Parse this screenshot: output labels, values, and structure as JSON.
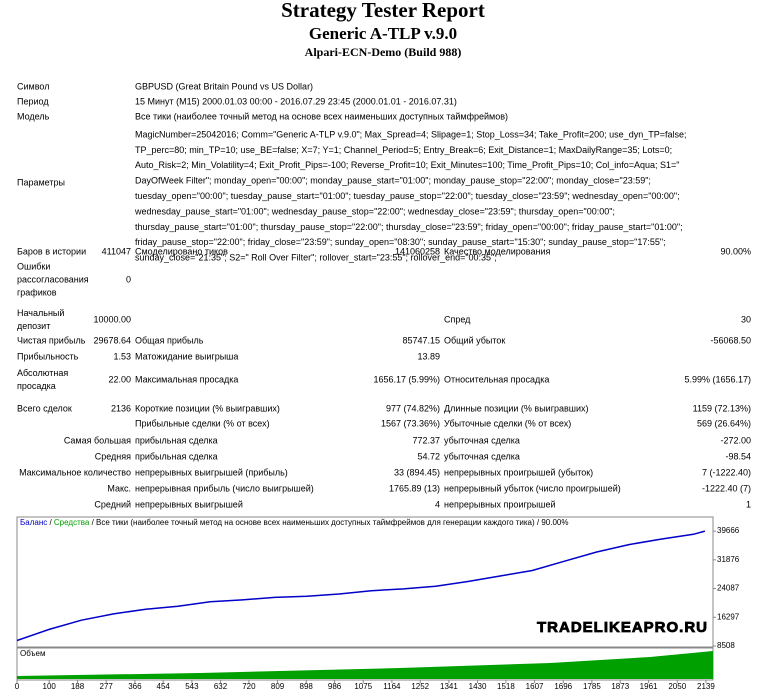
{
  "header": {
    "title": "Strategy Tester Report",
    "subtitle": "Generic A-TLP v.9.0",
    "server": "Alpari-ECN-Demo (Build 988)"
  },
  "info": [
    {
      "label": "Символ",
      "value": "GBPUSD (Great Britain Pound vs US Dollar)"
    },
    {
      "label": "Период",
      "value": "15 Минут (M15) 2000.01.03 00:00 - 2016.07.29 23:45 (2000.01.01 - 2016.07.31)"
    },
    {
      "label": "Модель",
      "value": "Все тики (наиболее точный метод на основе всех наименьших доступных таймфреймов)"
    }
  ],
  "parameters": {
    "label": "Параметры",
    "lines": [
      "MagicNumber=25042016; Comm=\"Generic A-TLP v.9.0\"; Max_Spread=4; Slipage=1; Stop_Loss=34; Take_Profit=200; use_dyn_TP=false;",
      "TP_perc=80; min_TP=10; use_BE=false; X=7; Y=1; Channel_Period=5; Entry_Break=6; Exit_Distance=1; MaxDailyRange=35; Lots=0;",
      "Auto_Risk=2; Min_Volatility=4; Exit_Profit_Pips=-100; Reverse_Profit=10; Exit_Minutes=100; Time_Profit_Pips=10; Col_info=Aqua; S1=\"",
      "DayOfWeek Filter\"; monday_open=\"00:00\"; monday_pause_start=\"01:00\"; monday_pause_stop=\"22:00\"; monday_close=\"23:59\";",
      "tuesday_open=\"00:00\"; tuesday_pause_start=\"01:00\"; tuesday_pause_stop=\"22:00\"; tuesday_close=\"23:59\"; wednesday_open=\"00:00\";",
      "wednesday_pause_start=\"01:00\"; wednesday_pause_stop=\"22:00\"; wednesday_close=\"23:59\"; thursday_open=\"00:00\";",
      "thursday_pause_start=\"01:00\"; thursday_pause_stop=\"22:00\"; thursday_close=\"23:59\"; friday_open=\"00:00\"; friday_pause_start=\"01:00\";",
      "friday_pause_stop=\"22:00\"; friday_close=\"23:59\"; sunday_open=\"08:30\"; sunday_pause_start=\"15:30\"; sunday_pause_stop=\"17:55\";",
      "sunday_close=\"21:35\"; S2=\" Roll Over Filter\"; rollover_start=\"23:55\"; rollover_end=\"00:35\";"
    ]
  },
  "stats": [
    {
      "label1": [
        "Баров в истории"
      ],
      "value1": "411047",
      "label2": "Смоделировано тиков",
      "value2": "141060258",
      "label3": "Качество моделирования",
      "value3": "90.00%"
    },
    {
      "label1": [
        "Ошибки",
        "рассогласования",
        "графиков"
      ],
      "value1": "0"
    },
    {
      "label1": [
        "Начальный",
        "депозит"
      ],
      "value1": "10000.00",
      "label3": "Спред",
      "value3": "30"
    },
    {
      "label1": [
        "Чистая прибыль"
      ],
      "value1": "29678.64",
      "label2": "Общая прибыль",
      "value2": "85747.15",
      "label3": "Общий убыток",
      "value3": "-56068.50"
    },
    {
      "label1": [
        "Прибыльность"
      ],
      "value1": "1.53",
      "label2": "Матожидание выигрыша",
      "value2": "13.89"
    },
    {
      "label1": [
        "Абсолютная",
        "просадка"
      ],
      "value1": "22.00",
      "label2": "Максимальная просадка",
      "value2": "1656.17 (5.99%)",
      "label3": "Относительная просадка",
      "value3": "5.99% (1656.17)"
    },
    {
      "label1": [
        "Всего сделок"
      ],
      "value1": "2136",
      "label2": "Короткие позиции (% выигравших)",
      "value2": "977 (74.82%)",
      "label3": "Длинные позиции (% выигравших)",
      "value3": "1159 (72.13%)"
    },
    {
      "label2": "Прибыльные сделки (% от всех)",
      "value2": "1567 (73.36%)",
      "label3": "Убыточные сделки (% от всех)",
      "value3": "569 (26.64%)"
    },
    {
      "label1": [
        "Самая большая"
      ],
      "label2": "прибыльная сделка",
      "value2": "772.37",
      "label3": "убыточная сделка",
      "value3": "-272.00"
    },
    {
      "label1": [
        "Средняя"
      ],
      "label2": "прибыльная сделка",
      "value2": "54.72",
      "label3": "убыточная сделка",
      "value3": "-98.54"
    },
    {
      "label1": [
        "Максимальное количество"
      ],
      "label2": "непрерывных выигрышей (прибыль)",
      "value2": "33 (894.45)",
      "label3": "непрерывных проигрышей (убыток)",
      "value3": "7 (-1222.40)"
    },
    {
      "label1": [
        "Макс."
      ],
      "label2": "непрерывная прибыль (число выигрышей)",
      "value2": "1765.89 (13)",
      "label3": "непрерывный убыток (число проигрышей)",
      "value3": "-1222.40 (7)"
    },
    {
      "label1": [
        "Средний"
      ],
      "label2": "непрерывных выигрышей",
      "value2": "4",
      "label3": "непрерывных проигрышей",
      "value3": "1"
    }
  ],
  "chart_data": {
    "type": "line",
    "legend_separator": " / ",
    "legend_extra": [
      {
        "text": "Средства",
        "color": "#00a000"
      },
      {
        "text": "Все тики (наиболее точный метод на основе всех наименьших доступных таймфреймов для генерации каждого тика)",
        "color": "#000000"
      },
      {
        "text": "90.00%",
        "color": "#000000"
      }
    ],
    "volume_label": "Объем",
    "watermark": "TRADELIKEAPRO.RU",
    "x": [
      0,
      100,
      200,
      300,
      400,
      500,
      600,
      700,
      800,
      900,
      1000,
      1100,
      1200,
      1300,
      1400,
      1500,
      1600,
      1700,
      1800,
      1900,
      2000,
      2100,
      2136
    ],
    "series": [
      {
        "name": "Баланс",
        "color": "#0000c8",
        "values": [
          10000,
          13000,
          15500,
          17200,
          18500,
          19300,
          20500,
          21000,
          21700,
          22000,
          22600,
          23500,
          24000,
          24700,
          26000,
          27500,
          29000,
          31500,
          34000,
          36000,
          37500,
          38800,
          39678.64
        ]
      }
    ],
    "xlim": [
      0,
      2161
    ],
    "ylim": [
      8234,
      43500
    ],
    "yticks": [
      8508,
      16297,
      24087,
      31876,
      39666
    ],
    "xticks": [
      0,
      100,
      188,
      277,
      366,
      454,
      543,
      632,
      720,
      809,
      898,
      986,
      1075,
      1164,
      1252,
      1341,
      1430,
      1518,
      1607,
      1696,
      1785,
      1873,
      1961,
      2050,
      2139
    ]
  }
}
